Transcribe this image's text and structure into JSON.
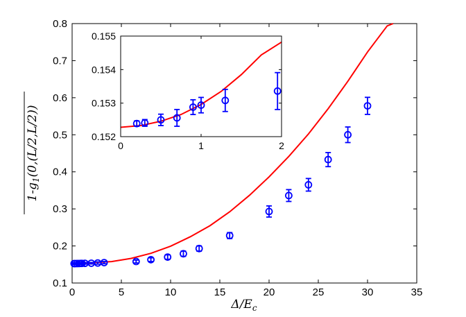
{
  "chart_data": [
    {
      "type": "scatter",
      "xlabel": "Δ/E_c",
      "ylabel": "1-g_1(0,(L/2,L/2))",
      "xlim": [
        0,
        35
      ],
      "ylim": [
        0.1,
        0.8
      ],
      "xticks": [
        "0",
        "5",
        "10",
        "15",
        "20",
        "25",
        "30",
        "35"
      ],
      "yticks": [
        "0.1",
        "0.2",
        "0.3",
        "0.4",
        "0.5",
        "0.6",
        "0.7",
        "0.8"
      ],
      "grid": false,
      "series": [
        {
          "kind": "points-with-errorbars",
          "marker": "circle",
          "color": "#0000ff",
          "x": [
            0.2,
            0.3,
            0.5,
            0.7,
            0.9,
            1.0,
            1.3,
            1.95,
            2.6,
            3.25,
            6.5,
            8.0,
            9.7,
            11.3,
            12.9,
            16.0,
            20.0,
            22.0,
            24.0,
            26.0,
            28.0,
            30.0
          ],
          "y": [
            0.1524,
            0.1524,
            0.1525,
            0.1526,
            0.1529,
            0.1529,
            0.1531,
            0.1534,
            0.154,
            0.155,
            0.158,
            0.163,
            0.17,
            0.179,
            0.193,
            0.228,
            0.293,
            0.336,
            0.365,
            0.433,
            0.5,
            0.578
          ],
          "err": [
            0.002,
            0.002,
            0.002,
            0.002,
            0.002,
            0.002,
            0.002,
            0.002,
            0.003,
            0.003,
            0.004,
            0.005,
            0.006,
            0.007,
            0.007,
            0.008,
            0.015,
            0.016,
            0.017,
            0.019,
            0.021,
            0.023
          ]
        },
        {
          "kind": "curve",
          "color": "#ff0000",
          "x": [
            0,
            2,
            4,
            6,
            8,
            10,
            12,
            14,
            16,
            18,
            20,
            22,
            24,
            26,
            28,
            30,
            32,
            32.6
          ],
          "y": [
            0.153,
            0.155,
            0.1577,
            0.1664,
            0.1801,
            0.1993,
            0.2248,
            0.2547,
            0.2921,
            0.3364,
            0.3864,
            0.4414,
            0.5022,
            0.5703,
            0.6442,
            0.7234,
            0.7938,
            0.8
          ]
        }
      ]
    },
    {
      "type": "scatter",
      "xlim": [
        0,
        2
      ],
      "ylim": [
        0.152,
        0.155
      ],
      "xticks": [
        "0",
        "1",
        "2"
      ],
      "yticks": [
        "0.152",
        "0.153",
        "0.154",
        "0.155"
      ],
      "grid": false,
      "series": [
        {
          "kind": "points-with-errorbars",
          "marker": "circle",
          "color": "#0000ff",
          "x": [
            0.2,
            0.3,
            0.5,
            0.7,
            0.9,
            1.0,
            1.3,
            1.95
          ],
          "y": [
            0.15239,
            0.15241,
            0.1525,
            0.15256,
            0.15288,
            0.15294,
            0.15308,
            0.15336
          ],
          "err": [
            8e-05,
            0.0001,
            0.00017,
            0.00025,
            0.00022,
            0.00023,
            0.00033,
            0.00055
          ]
        },
        {
          "kind": "curve",
          "color": "#ff0000",
          "x": [
            0,
            0.25,
            0.5,
            0.75,
            1.0,
            1.25,
            1.5,
            1.75,
            2.0
          ],
          "y": [
            0.15228,
            0.15233,
            0.15246,
            0.15266,
            0.15296,
            0.15335,
            0.15385,
            0.15444,
            0.15482
          ]
        }
      ]
    }
  ]
}
